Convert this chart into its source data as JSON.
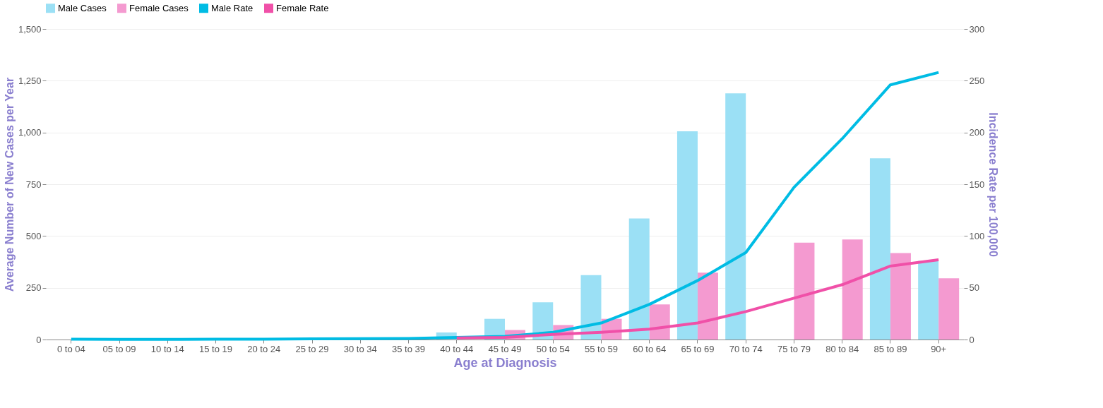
{
  "chart_data": {
    "type": "bar",
    "xlabel": "Age at Diagnosis",
    "ylabel": "Average Number of New Cases per Year",
    "y2label": "Incidence Rate per 100,000",
    "categories": [
      "0 to 04",
      "05 to 09",
      "10 to 14",
      "15 to 19",
      "20 to 24",
      "25 to 29",
      "30 to 34",
      "35 to 39",
      "40 to 44",
      "45 to 49",
      "50 to 54",
      "55 to 59",
      "60 to 64",
      "65 to 69",
      "70 to 74",
      "75 to 79",
      "80 to 84",
      "85 to 89",
      "90+"
    ],
    "series": [
      {
        "name": "Male Cases",
        "color": "#9be0f5",
        "values": [
          null,
          null,
          null,
          null,
          null,
          null,
          null,
          null,
          34,
          100,
          180,
          311,
          585,
          1006,
          1189,
          null,
          null,
          875,
          380
        ]
      },
      {
        "name": "Female Cases",
        "color": "#f49ad0",
        "values": [
          null,
          null,
          null,
          null,
          null,
          null,
          null,
          null,
          null,
          46,
          70,
          100,
          170,
          323,
          null,
          468,
          483,
          418,
          296
        ]
      },
      {
        "name": "Male Rate",
        "type": "line",
        "axis": "y2",
        "color": "#00bce4",
        "values": [
          0.3,
          0.2,
          0.2,
          0.3,
          0.4,
          0.6,
          0.8,
          1,
          2,
          3,
          7,
          16,
          34,
          57,
          84,
          147,
          194,
          246,
          258
        ]
      },
      {
        "name": "Female Rate",
        "type": "line",
        "axis": "y2",
        "color": "#f050a8",
        "values": [
          null,
          null,
          null,
          null,
          null,
          null,
          null,
          null,
          1.5,
          2,
          5,
          7,
          10,
          16,
          27,
          40,
          53,
          71,
          77
        ]
      }
    ],
    "ylim": [
      0,
      1500
    ],
    "yticks": [
      0,
      {
        "value": 250,
        "label": "250"
      },
      {
        "value": 500,
        "label": "500"
      },
      {
        "value": 750,
        "label": "750"
      },
      {
        "value": 1000,
        "label": "1,000"
      },
      {
        "value": 1250,
        "label": "1,250"
      },
      {
        "value": 1500,
        "label": "1,500"
      }
    ],
    "y2lim": [
      0,
      300
    ],
    "y2ticks": [
      0,
      50,
      100,
      150,
      200,
      250,
      300
    ],
    "grid": "y",
    "legend": "top"
  }
}
